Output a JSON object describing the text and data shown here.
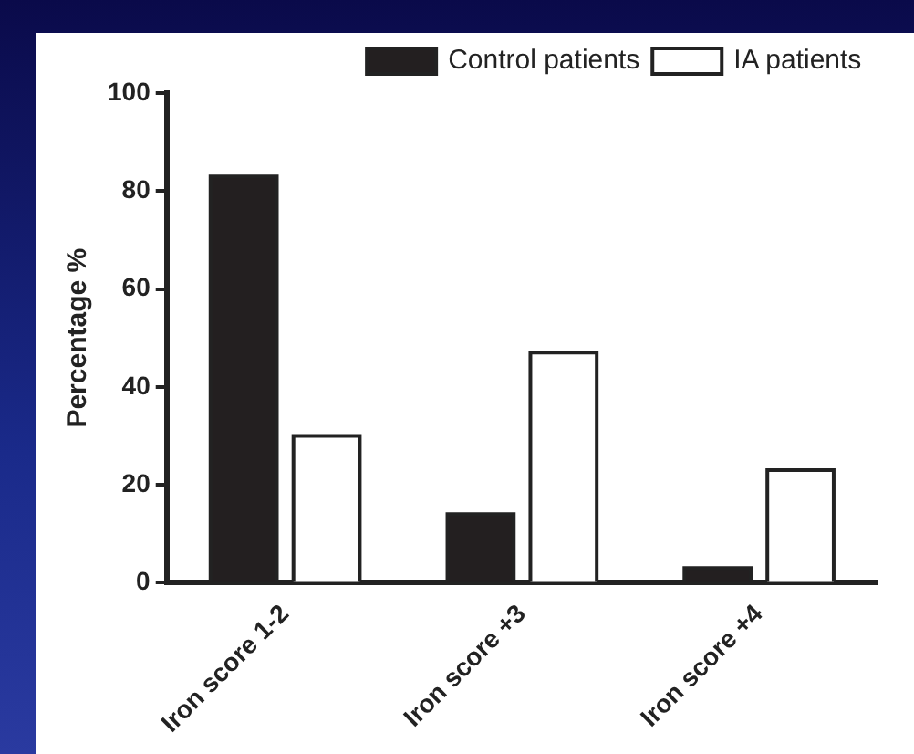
{
  "chart_data": {
    "type": "bar",
    "ylabel": "Percentage %",
    "categories": [
      "Iron score 1-2",
      "Iron score +3",
      "Iron score +4"
    ],
    "series": [
      {
        "name": "Control patients",
        "color": "#231f20",
        "values": [
          83,
          14,
          3
        ]
      },
      {
        "name": "IA patients",
        "color": "#ffffff",
        "values": [
          30,
          47,
          23
        ]
      }
    ],
    "ylim": [
      0,
      100
    ],
    "yticks": [
      0,
      20,
      40,
      60,
      80,
      100
    ],
    "grid": false,
    "legend": "top right"
  }
}
